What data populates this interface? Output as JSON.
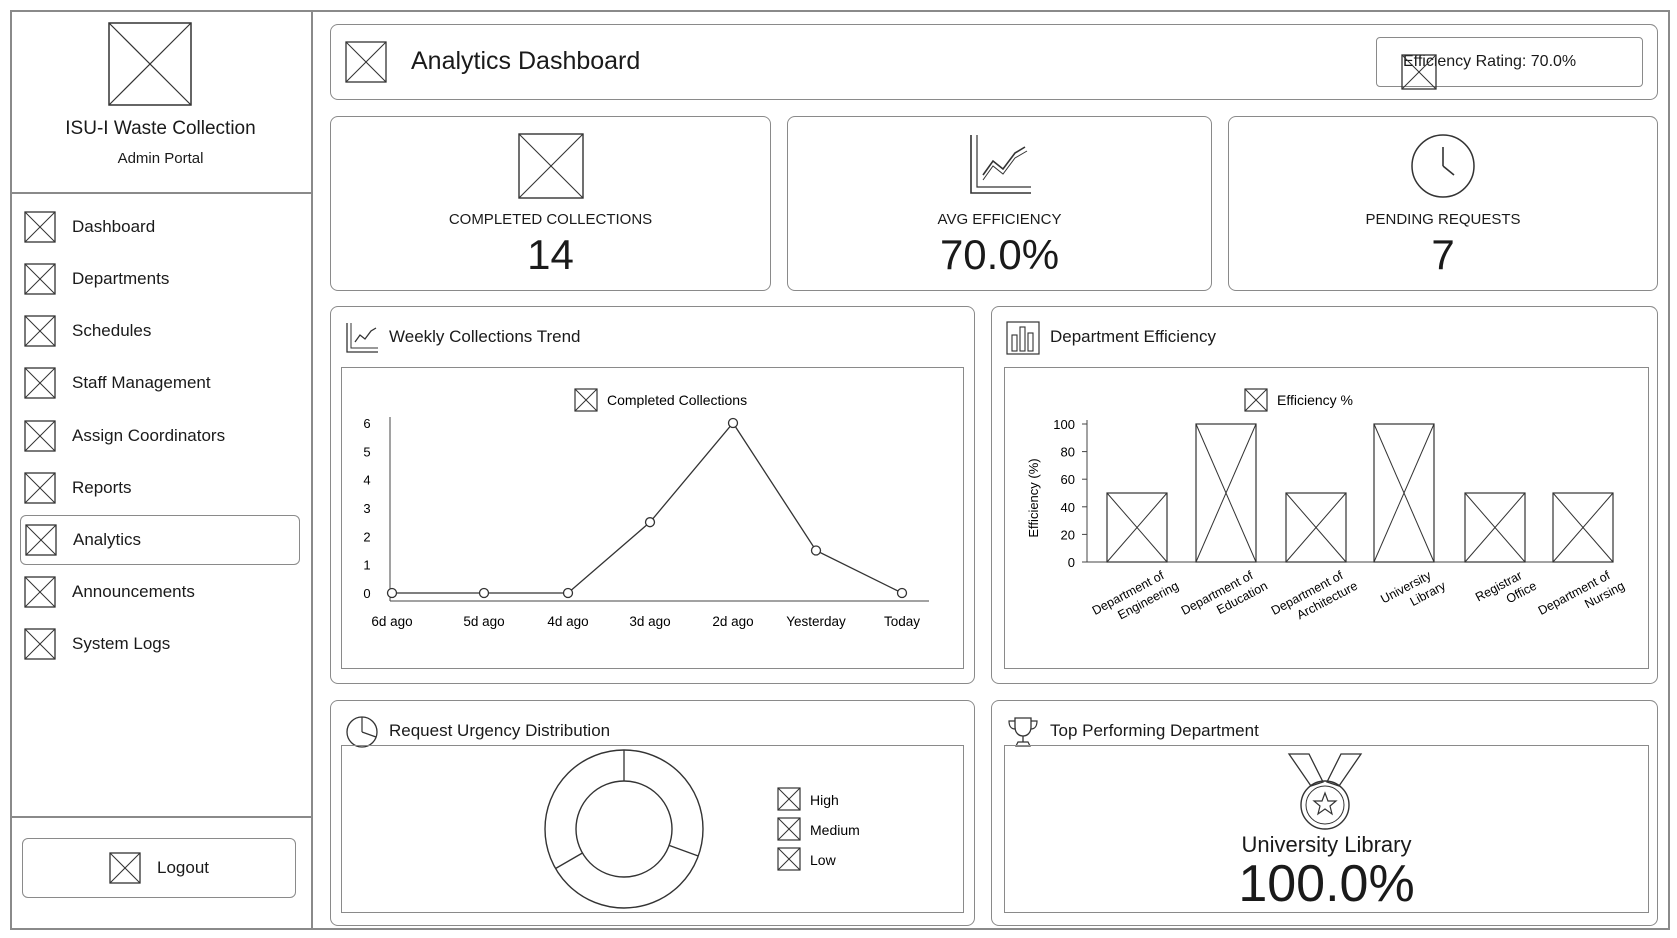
{
  "sidebar": {
    "title": "ISU-I Waste Collection",
    "subtitle": "Admin Portal",
    "items": [
      {
        "label": "Dashboard"
      },
      {
        "label": "Departments"
      },
      {
        "label": "Schedules"
      },
      {
        "label": "Staff Management"
      },
      {
        "label": "Assign Coordinators"
      },
      {
        "label": "Reports"
      },
      {
        "label": "Analytics",
        "active": true
      },
      {
        "label": "Announcements"
      },
      {
        "label": "System Logs"
      }
    ],
    "logout_label": "Logout"
  },
  "header": {
    "title": "Analytics Dashboard",
    "badge": "Efficiency Rating: 70.0%"
  },
  "stats": [
    {
      "label": "COMPLETED COLLECTIONS",
      "value": "14",
      "icon": "placeholder-image-icon"
    },
    {
      "label": "AVG EFFICIENCY",
      "value": "70.0%",
      "icon": "line-chart-icon"
    },
    {
      "label": "PENDING REQUESTS",
      "value": "7",
      "icon": "clock-icon"
    }
  ],
  "weekly": {
    "title": "Weekly Collections Trend",
    "icon": "line-chart-icon"
  },
  "efficiency": {
    "title": "Department Efficiency",
    "icon": "bar-chart-icon"
  },
  "urgency": {
    "title": "Request Urgency Distribution",
    "icon": "pie-chart-icon"
  },
  "top": {
    "title": "Top Performing Department",
    "icon": "trophy-icon",
    "department": "University Library",
    "value": "100.0%"
  },
  "chart_data": [
    {
      "type": "line",
      "legend": [
        "Completed Collections"
      ],
      "categories": [
        "6d ago",
        "5d ago",
        "4d ago",
        "3d ago",
        "2d ago",
        "Yesterday",
        "Today"
      ],
      "series": [
        {
          "name": "Completed Collections",
          "values": [
            0,
            0,
            0,
            2.5,
            6,
            1.5,
            0
          ]
        }
      ],
      "yticks": [
        "0",
        "1",
        "2",
        "3",
        "4",
        "5",
        "6"
      ],
      "ylim": [
        0,
        6
      ]
    },
    {
      "type": "bar",
      "legend": [
        "Efficiency %"
      ],
      "ylabel": "Efficiency (%)",
      "categories": [
        [
          "Department of",
          "Engineering"
        ],
        [
          "Department of",
          "Education"
        ],
        [
          "Department of",
          "Architecture"
        ],
        [
          "University",
          "Library"
        ],
        [
          "Registrar",
          "Office"
        ],
        [
          "Department of",
          "Nursing"
        ]
      ],
      "series": [
        {
          "name": "Efficiency %",
          "values": [
            50,
            100,
            50,
            100,
            50,
            50
          ]
        }
      ],
      "yticks": [
        "0",
        "20",
        "40",
        "60",
        "80",
        "100"
      ],
      "ylim": [
        0,
        100
      ]
    },
    {
      "type": "pie",
      "legend": [
        "High",
        "Medium",
        "Low"
      ]
    }
  ]
}
